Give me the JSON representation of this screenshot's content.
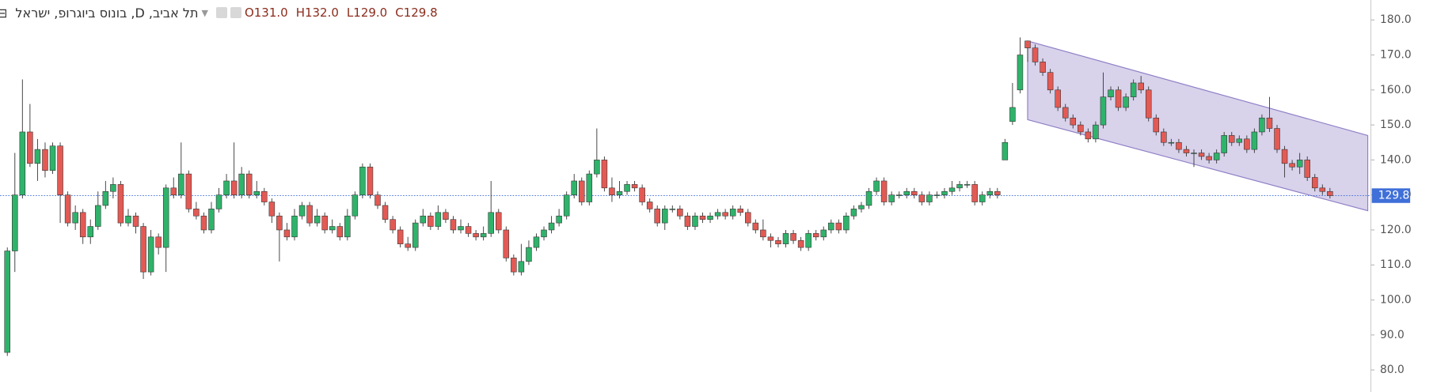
{
  "chart_data": {
    "type": "candlestick",
    "title": "תל אביב, D, בונוס ביוגרופ, ישראל",
    "legend_values": [
      "O131.0",
      "H132.0",
      "L129.0",
      "C129.8"
    ],
    "open": [
      85,
      114,
      130,
      148,
      139,
      143,
      137,
      144,
      130,
      122,
      125,
      118,
      121,
      127,
      131,
      133,
      122,
      124,
      121,
      108,
      118,
      115,
      132,
      130,
      136,
      126,
      124,
      120,
      126,
      130,
      134,
      130,
      136,
      130,
      131,
      128,
      124,
      120,
      118,
      124,
      127,
      122,
      124,
      120,
      121,
      118,
      124,
      130,
      138,
      130,
      127,
      123,
      120,
      116,
      115,
      122,
      124,
      121,
      125,
      123,
      120,
      121,
      119,
      118,
      119,
      125,
      120,
      112,
      108,
      111,
      115,
      118,
      120,
      122,
      124,
      130,
      134,
      128,
      136,
      140,
      132,
      130,
      131,
      133,
      132,
      128,
      126,
      122,
      126,
      126,
      124,
      121,
      124,
      123,
      124,
      125,
      124,
      126,
      125,
      122,
      120,
      118,
      117,
      116,
      119,
      117,
      115,
      119,
      118,
      120,
      122,
      120,
      124,
      126,
      127,
      131,
      134,
      128,
      130,
      130,
      131,
      130,
      128,
      130,
      130,
      131,
      132,
      133,
      133,
      128,
      130,
      131,
      140,
      151,
      160,
      174,
      172,
      168,
      165,
      160,
      155,
      152,
      150,
      148,
      146,
      150,
      158,
      160,
      155,
      158,
      162,
      160,
      152,
      148,
      145,
      145,
      143,
      142,
      142,
      141,
      140,
      142,
      147,
      145,
      146,
      143,
      148,
      152,
      149,
      143,
      139,
      138,
      140,
      135,
      132,
      131
    ],
    "high": [
      115,
      142,
      163,
      156,
      146,
      145,
      145,
      145,
      131,
      127,
      126,
      123,
      131,
      134,
      135,
      134,
      126,
      125,
      122,
      120,
      119,
      133,
      135,
      145,
      137,
      128,
      125,
      128,
      132,
      136,
      145,
      138,
      137,
      134,
      132,
      129,
      125,
      122,
      126,
      128,
      128,
      126,
      125,
      123,
      122,
      126,
      131,
      139,
      139,
      131,
      128,
      124,
      121,
      118,
      123,
      126,
      125,
      127,
      126,
      124,
      123,
      122,
      120,
      121,
      134,
      126,
      121,
      113,
      116,
      117,
      119,
      121,
      124,
      126,
      131,
      136,
      135,
      137,
      149,
      141,
      135,
      134,
      134,
      134,
      133,
      129,
      127,
      127,
      127,
      127,
      125,
      125,
      125,
      125,
      126,
      126,
      127,
      127,
      126,
      123,
      123,
      119,
      118,
      120,
      120,
      118,
      120,
      120,
      121,
      123,
      123,
      125,
      127,
      128,
      132,
      135,
      135,
      131,
      131,
      132,
      132,
      131,
      131,
      131,
      132,
      134,
      134,
      134,
      134,
      131,
      132,
      132,
      146,
      162,
      175,
      174,
      173,
      169,
      166,
      161,
      156,
      153,
      151,
      149,
      151,
      165,
      161,
      161,
      159,
      163,
      164,
      161,
      153,
      149,
      146,
      146,
      144,
      143,
      143,
      142,
      143,
      148,
      148,
      147,
      147,
      149,
      153,
      158,
      150,
      144,
      140,
      142,
      141,
      136,
      133,
      132
    ],
    "low": [
      84,
      108,
      129,
      138,
      134,
      135,
      136,
      122,
      121,
      120,
      116,
      116,
      120,
      126,
      129,
      121,
      121,
      119,
      106,
      107,
      113,
      108,
      129,
      129,
      125,
      123,
      119,
      119,
      125,
      129,
      129,
      129,
      129,
      129,
      127,
      122,
      111,
      117,
      117,
      123,
      121,
      121,
      119,
      119,
      117,
      117,
      123,
      129,
      129,
      126,
      122,
      119,
      115,
      114,
      114,
      121,
      120,
      120,
      122,
      119,
      119,
      118,
      117,
      117,
      118,
      119,
      111,
      107,
      107,
      110,
      114,
      117,
      119,
      121,
      123,
      129,
      127,
      127,
      135,
      131,
      128,
      129,
      130,
      131,
      127,
      125,
      121,
      120,
      125,
      123,
      120,
      120,
      122,
      122,
      123,
      123,
      123,
      124,
      121,
      119,
      117,
      115,
      115,
      115,
      116,
      114,
      114,
      117,
      117,
      119,
      119,
      119,
      123,
      125,
      126,
      130,
      127,
      127,
      129,
      129,
      129,
      127,
      127,
      129,
      129,
      130,
      131,
      132,
      127,
      127,
      129,
      129,
      140,
      150,
      159,
      168,
      167,
      164,
      159,
      154,
      151,
      149,
      147,
      145,
      145,
      149,
      157,
      154,
      154,
      157,
      159,
      151,
      147,
      144,
      144,
      142,
      141,
      138,
      140,
      139,
      139,
      141,
      144,
      144,
      142,
      142,
      147,
      148,
      142,
      135,
      137,
      136,
      134,
      131,
      130,
      129
    ],
    "close": [
      114,
      130,
      148,
      139,
      143,
      137,
      144,
      130,
      122,
      125,
      118,
      121,
      127,
      131,
      133,
      122,
      124,
      121,
      108,
      118,
      115,
      132,
      130,
      136,
      126,
      124,
      120,
      126,
      130,
      134,
      130,
      136,
      130,
      131,
      128,
      124,
      120,
      118,
      124,
      127,
      122,
      124,
      120,
      121,
      118,
      124,
      130,
      138,
      130,
      127,
      123,
      120,
      116,
      115,
      122,
      124,
      121,
      125,
      123,
      120,
      121,
      119,
      118,
      119,
      125,
      120,
      112,
      108,
      111,
      115,
      118,
      120,
      122,
      124,
      130,
      134,
      128,
      136,
      140,
      132,
      130,
      131,
      133,
      132,
      128,
      126,
      122,
      126,
      126,
      124,
      121,
      124,
      123,
      124,
      125,
      124,
      126,
      125,
      122,
      120,
      118,
      117,
      116,
      119,
      117,
      115,
      119,
      118,
      120,
      122,
      120,
      124,
      126,
      127,
      131,
      134,
      128,
      130,
      130,
      131,
      130,
      128,
      130,
      130,
      131,
      132,
      133,
      133,
      128,
      130,
      131,
      130,
      145,
      155,
      170,
      172,
      168,
      165,
      160,
      155,
      152,
      150,
      148,
      146,
      150,
      158,
      160,
      155,
      158,
      162,
      160,
      152,
      148,
      145,
      145,
      143,
      142,
      142,
      141,
      140,
      142,
      147,
      145,
      146,
      143,
      148,
      152,
      149,
      143,
      139,
      138,
      140,
      135,
      132,
      131,
      129.8
    ],
    "up_color": "#2fb36b",
    "down_color": "#e35a54",
    "wick_color": "#3a3a3a",
    "channel": {
      "x": [
        135,
        180
      ],
      "upper": [
        174,
        147
      ],
      "lower": [
        151.5,
        125.5
      ],
      "color": "#8f7fc6"
    },
    "last_price": {
      "value": 129.8,
      "label": "129.8",
      "color": "#3f6fd8"
    },
    "ylim": [
      73.7,
      185.7
    ],
    "yticks": [
      {
        "value": 80,
        "label": "80.0"
      },
      {
        "value": 90,
        "label": "90.0"
      },
      {
        "value": 100,
        "label": "100.0"
      },
      {
        "value": 110,
        "label": "110.0"
      },
      {
        "value": 120,
        "label": "120.0"
      },
      {
        "value": 130,
        "label": "130.0"
      },
      {
        "value": 140,
        "label": "140.0"
      },
      {
        "value": 150,
        "label": "150.0"
      },
      {
        "value": 160,
        "label": "160.0"
      },
      {
        "value": 170,
        "label": "170.0"
      },
      {
        "value": 180,
        "label": "180.0"
      }
    ]
  }
}
